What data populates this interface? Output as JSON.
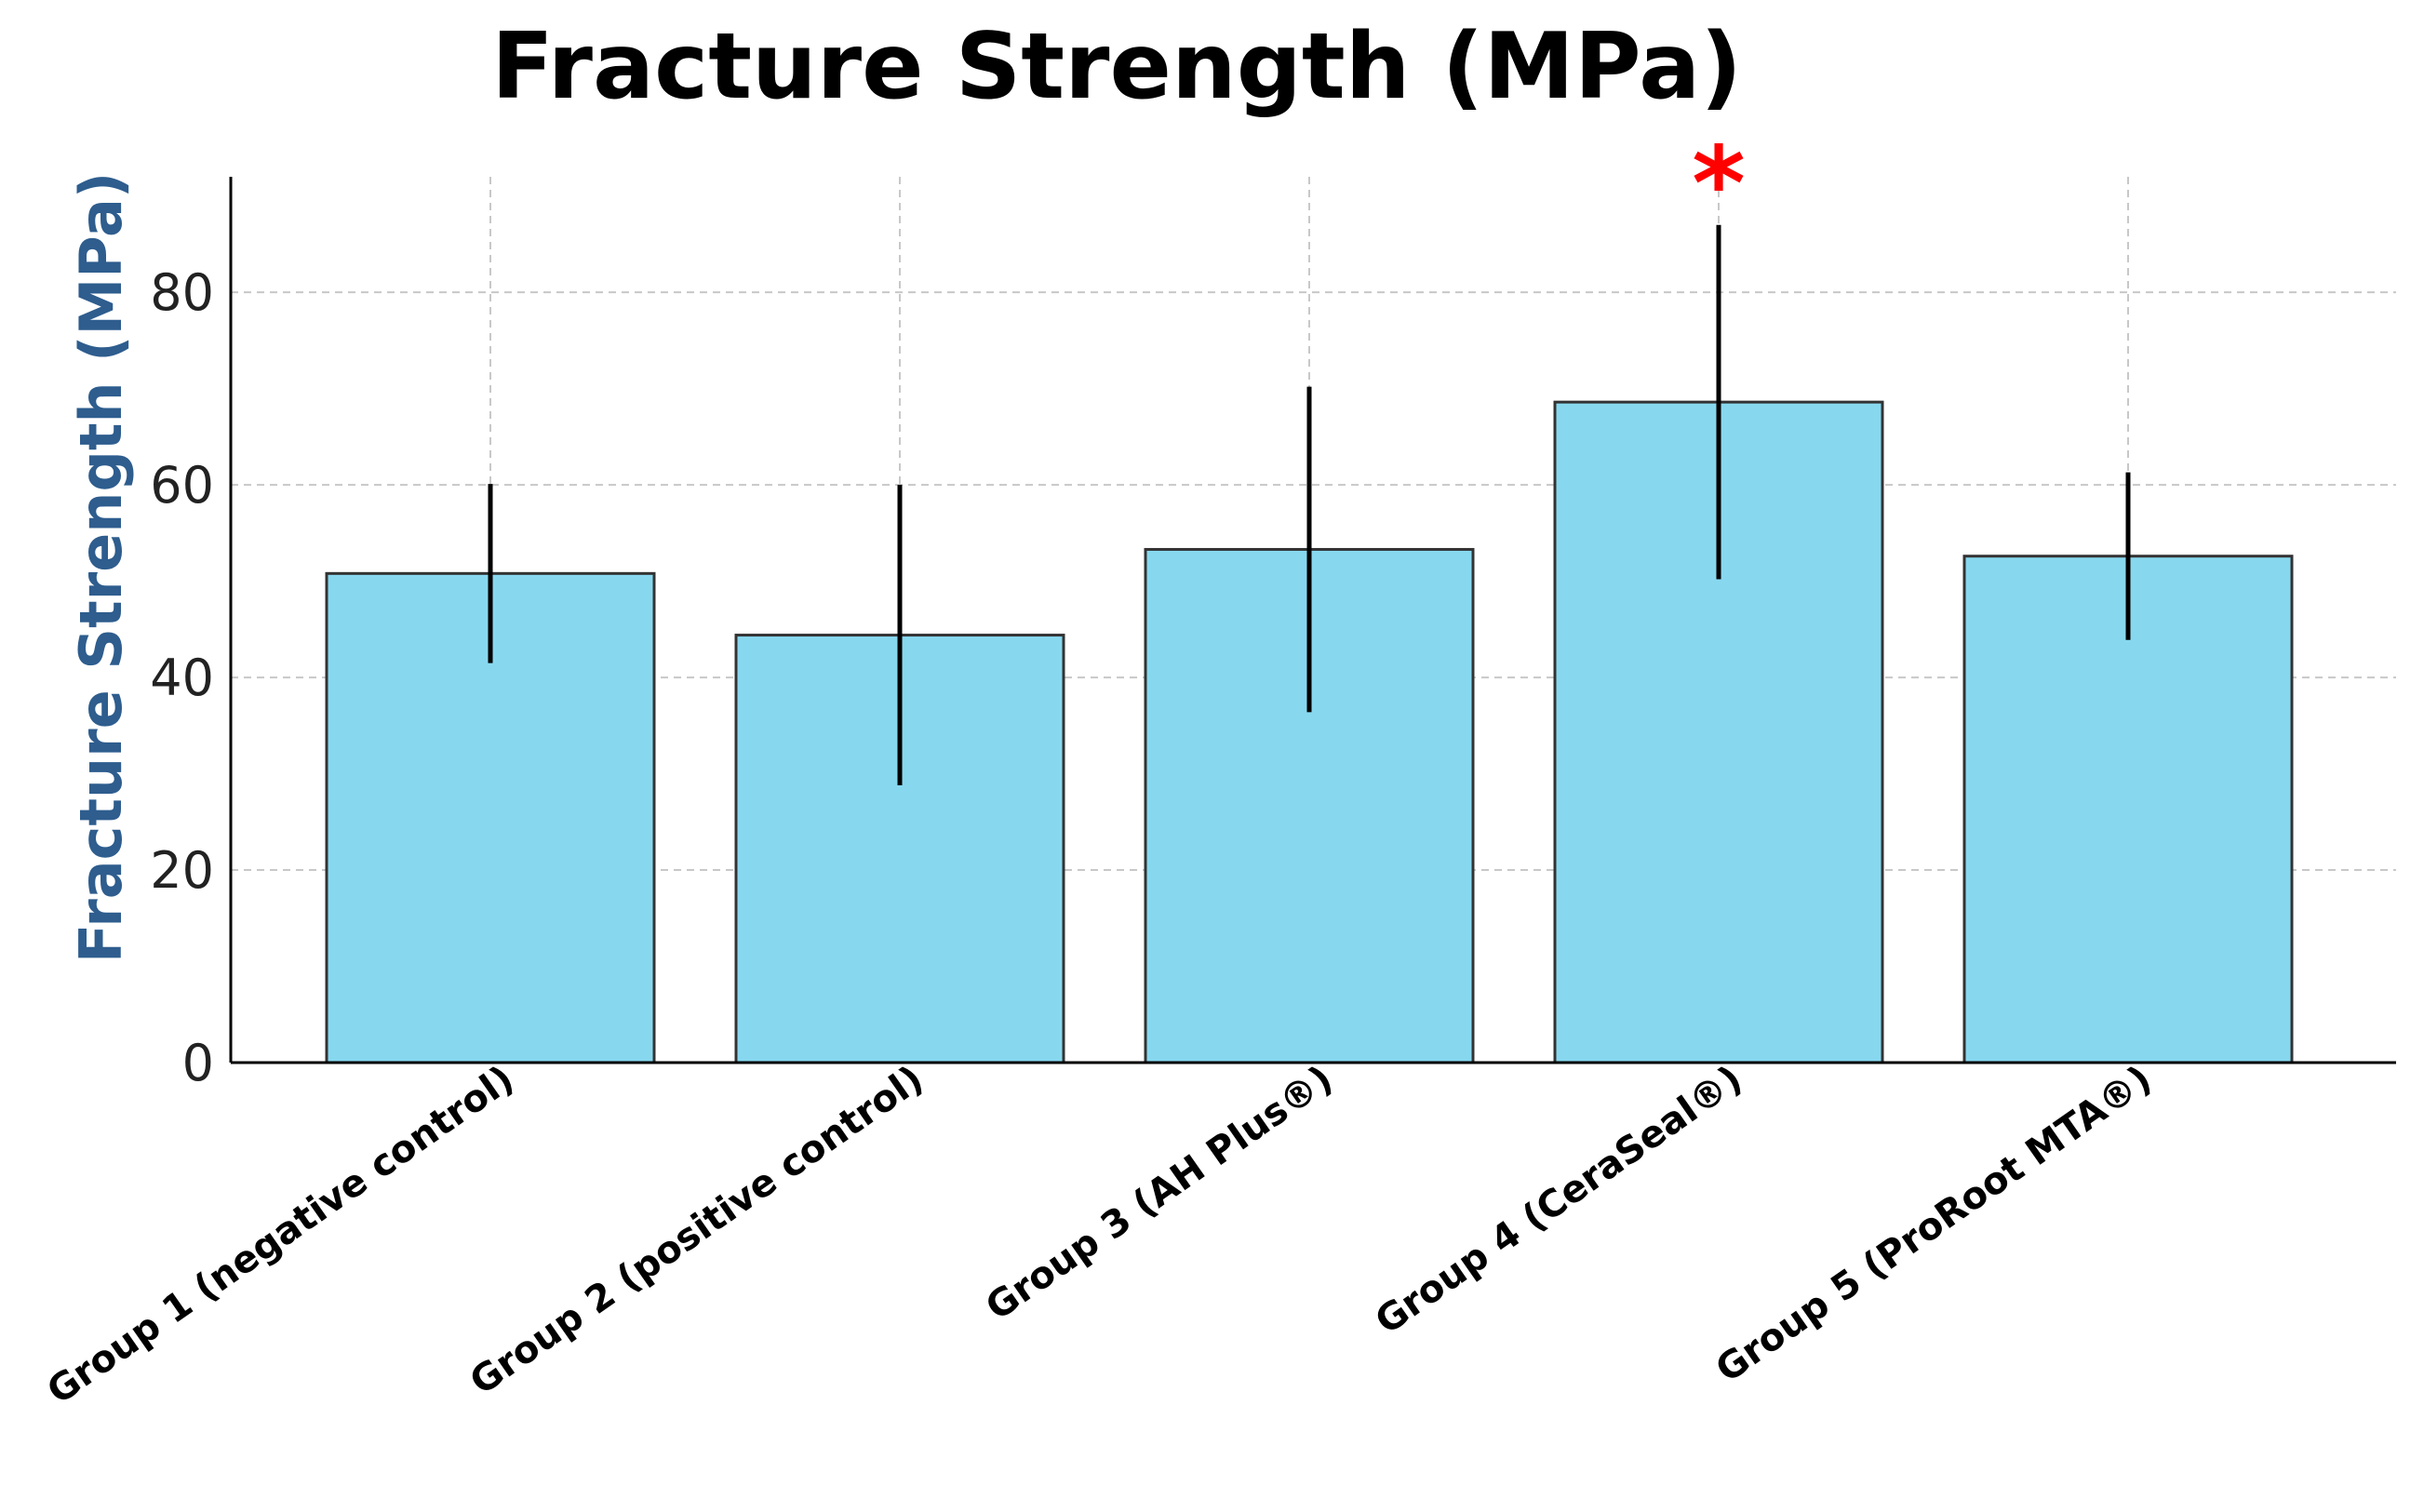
{
  "chart_data": {
    "type": "bar",
    "title": "Fracture Strength (MPa)",
    "xlabel": "",
    "ylabel": "Fracture Strength (MPa)",
    "ylim": [
      0,
      92
    ],
    "yticks": [
      0,
      20,
      40,
      60,
      80
    ],
    "grid": true,
    "categories": [
      "Group 1 (negative control)",
      "Group 2 (positive control)",
      "Group 3 (AH Plus®)",
      "Group 4 (CeraSeal®)",
      "Group 5 (ProRoot MTA®)"
    ],
    "values": [
      50.8,
      44.4,
      53.3,
      68.6,
      52.6
    ],
    "error": [
      9.3,
      15.6,
      16.9,
      18.4,
      8.7
    ],
    "significance": [
      {
        "category_index": 3,
        "mark": "*"
      }
    ],
    "colors": {
      "bar": "#87d8ef",
      "title": "#000000",
      "ylabel": "#2e5d8e",
      "significance": "#ff0000"
    }
  }
}
